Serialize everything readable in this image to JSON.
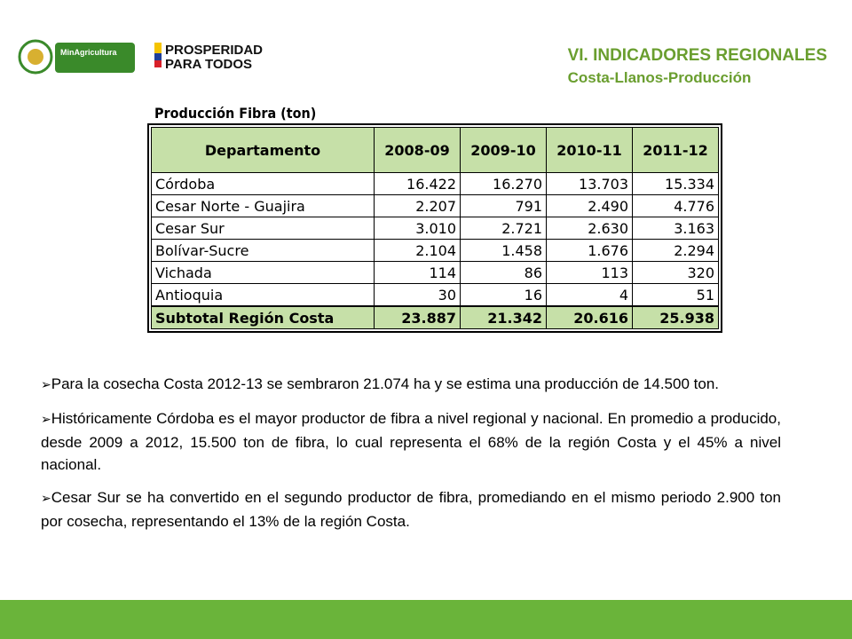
{
  "header": {
    "title": "VI. INDICADORES REGIONALES",
    "subtitle": "Costa-Llanos-Producción",
    "logo1": "MinAgricultura",
    "logo2_line1": "PROSPERIDAD",
    "logo2_line2": "PARA TODOS"
  },
  "table": {
    "caption": "Producción Fibra (ton)",
    "columns": [
      "Departamento",
      "2008-09",
      "2009-10",
      "2010-11",
      "2011-12"
    ],
    "rows": [
      [
        "Córdoba",
        "16.422",
        "16.270",
        "13.703",
        "15.334"
      ],
      [
        "Cesar Norte - Guajira",
        "2.207",
        "791",
        "2.490",
        "4.776"
      ],
      [
        "Cesar Sur",
        "3.010",
        "2.721",
        "2.630",
        "3.163"
      ],
      [
        "Bolívar-Sucre",
        "2.104",
        "1.458",
        "1.676",
        "2.294"
      ],
      [
        "Vichada",
        "114",
        "86",
        "113",
        "320"
      ],
      [
        "Antioquia",
        "30",
        "16",
        "4",
        "51"
      ]
    ],
    "total": [
      "Subtotal Región Costa",
      "23.887",
      "21.342",
      "20.616",
      "25.938"
    ]
  },
  "bullets": [
    "Para la cosecha Costa 2012-13 se sembraron 21.074 ha y se estima una producción de 14.500 ton.",
    "Históricamente Córdoba es el mayor productor de fibra a nivel regional y nacional. En promedio a producido, desde 2009 a 2012, 15.500 ton de fibra, lo cual representa el 68% de la región Costa y el 45% a nivel nacional.",
    "Cesar Sur se ha convertido en el segundo productor de fibra, promediando en el mismo periodo 2.900 ton por cosecha, representando el 13% de la región Costa."
  ]
}
